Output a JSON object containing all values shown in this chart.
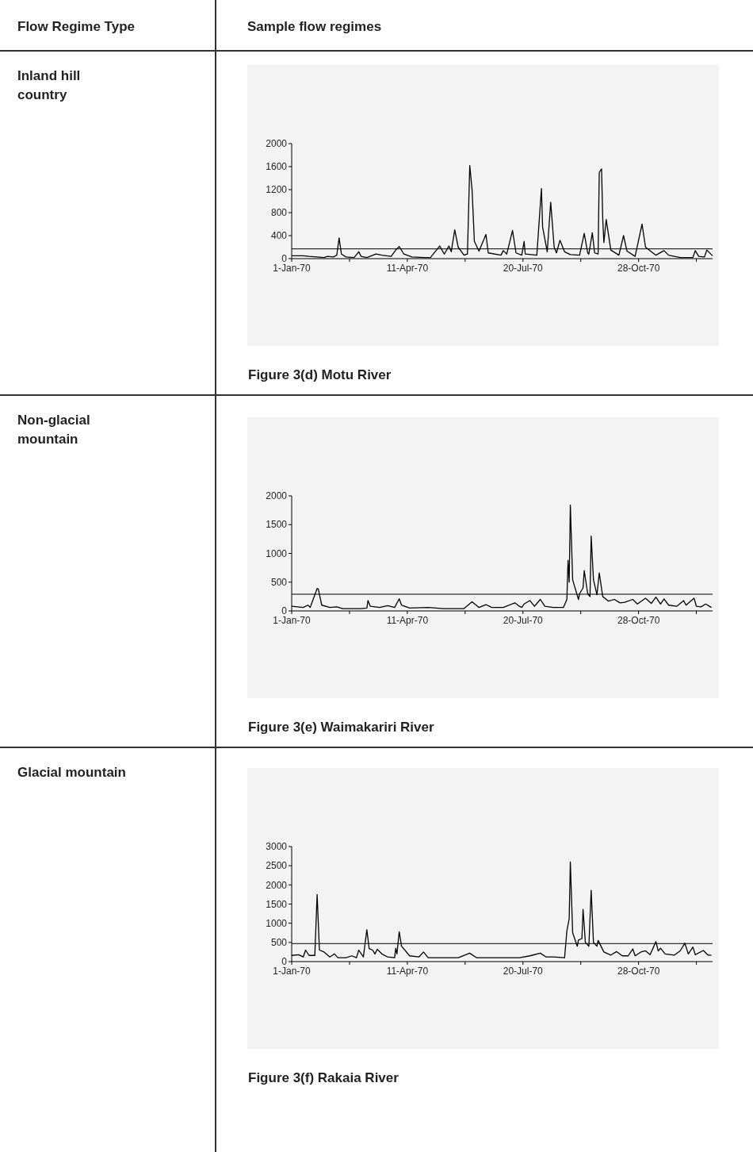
{
  "chart_data": [
    {
      "type": "line",
      "title": "Figure 3(d) Motu River",
      "annotations": [
        "Flow Regime Type",
        "Sample flow regimes",
        "Inland hill country"
      ],
      "xlim": [
        "1970-01-01",
        "1970-12-31"
      ],
      "xticks": [
        {
          "value": "1970-01-01",
          "label": "1-Jan-70"
        },
        {
          "value": "1970-02-20",
          "label": null
        },
        {
          "value": "1970-04-11",
          "label": "11-Apr-70"
        },
        {
          "value": "1970-05-31",
          "label": null
        },
        {
          "value": "1970-07-20",
          "label": "20-Jul-70"
        },
        {
          "value": "1970-09-08",
          "label": null
        },
        {
          "value": "1970-10-28",
          "label": "28-Oct-70"
        },
        {
          "value": "1970-12-17",
          "label": null
        }
      ],
      "ylim": [
        0,
        2000
      ],
      "yticks": [
        0,
        400,
        800,
        1200,
        1600,
        2000
      ],
      "marker": "none",
      "line_style": "solid",
      "ref_lines": [
        {
          "axis": "y",
          "value": 170,
          "color": "#000000"
        }
      ],
      "series": [
        {
          "color": "#000000",
          "x": [
            "1970-01-01",
            "1970-01-11",
            "1970-01-16",
            "1970-01-29",
            "1970-02-01",
            "1970-02-06",
            "1970-02-09",
            "1970-02-11",
            "1970-02-13",
            "1970-02-17",
            "1970-02-24",
            "1970-02-28",
            "1970-03-02",
            "1970-03-07",
            "1970-03-15",
            "1970-03-20",
            "1970-03-28",
            "1970-04-01",
            "1970-04-04",
            "1970-04-08",
            "1970-04-15",
            "1970-04-26",
            "1970-05-01",
            "1970-05-09",
            "1970-05-13",
            "1970-05-17",
            "1970-05-19",
            "1970-05-22",
            "1970-05-25",
            "1970-05-30",
            "1970-06-02",
            "1970-06-04",
            "1970-06-06",
            "1970-06-08",
            "1970-06-12",
            "1970-06-18",
            "1970-06-20",
            "1970-07-01",
            "1970-07-03",
            "1970-07-06",
            "1970-07-11",
            "1970-07-14",
            "1970-07-19",
            "1970-07-21",
            "1970-07-22",
            "1970-08-01",
            "1970-08-05",
            "1970-08-06",
            "1970-08-10",
            "1970-08-13",
            "1970-08-16",
            "1970-08-18",
            "1970-08-21",
            "1970-08-25",
            "1970-08-30",
            "1970-09-07",
            "1970-09-11",
            "1970-09-14",
            "1970-09-15",
            "1970-09-18",
            "1970-09-20",
            "1970-09-23",
            "1970-09-24",
            "1970-09-26",
            "1970-09-27",
            "1970-09-28",
            "1970-09-30",
            "1970-10-04",
            "1970-10-11",
            "1970-10-15",
            "1970-10-18",
            "1970-10-25",
            "1970-10-31",
            "1970-11-03",
            "1970-11-12",
            "1970-11-19",
            "1970-11-23",
            "1970-12-03",
            "1970-12-14",
            "1970-12-16",
            "1970-12-19",
            "1970-12-24",
            "1970-12-26",
            "1970-12-31"
          ],
          "values": [
            50,
            50,
            40,
            20,
            40,
            30,
            60,
            360,
            80,
            30,
            20,
            120,
            40,
            20,
            80,
            60,
            40,
            150,
            210,
            80,
            30,
            20,
            20,
            220,
            80,
            220,
            120,
            500,
            200,
            60,
            80,
            1620,
            1200,
            300,
            130,
            420,
            100,
            60,
            140,
            80,
            490,
            100,
            60,
            300,
            80,
            60,
            1220,
            550,
            120,
            980,
            200,
            100,
            320,
            120,
            70,
            60,
            440,
            100,
            80,
            450,
            100,
            80,
            1500,
            1560,
            700,
            280,
            680,
            150,
            60,
            400,
            130,
            40,
            600,
            200,
            60,
            140,
            60,
            20,
            20,
            140,
            40,
            30,
            150,
            50
          ]
        }
      ]
    },
    {
      "type": "line",
      "title": "Figure 3(e) Waimakariri River",
      "annotations": [
        "Non-glacial mountain"
      ],
      "xlim": [
        "1970-01-01",
        "1970-12-31"
      ],
      "xticks": [
        {
          "value": "1970-01-01",
          "label": "1-Jan-70"
        },
        {
          "value": "1970-02-20",
          "label": null
        },
        {
          "value": "1970-04-11",
          "label": "11-Apr-70"
        },
        {
          "value": "1970-05-31",
          "label": null
        },
        {
          "value": "1970-07-20",
          "label": "20-Jul-70"
        },
        {
          "value": "1970-09-08",
          "label": null
        },
        {
          "value": "1970-10-28",
          "label": "28-Oct-70"
        },
        {
          "value": "1970-12-17",
          "label": null
        }
      ],
      "ylim": [
        0,
        2000
      ],
      "yticks": [
        0,
        500,
        1000,
        1500,
        2000
      ],
      "marker": "none",
      "line_style": "solid",
      "ref_lines": [
        {
          "axis": "y",
          "value": 290,
          "color": "#000000"
        }
      ],
      "series": [
        {
          "color": "#000000",
          "x": [
            "1970-01-01",
            "1970-01-11",
            "1970-01-15",
            "1970-01-17",
            "1970-01-23",
            "1970-01-24",
            "1970-01-27",
            "1970-02-03",
            "1970-02-09",
            "1970-02-14",
            "1970-03-02",
            "1970-03-07",
            "1970-03-08",
            "1970-03-10",
            "1970-03-18",
            "1970-03-25",
            "1970-03-31",
            "1970-04-04",
            "1970-04-06",
            "1970-04-13",
            "1970-04-29",
            "1970-05-12",
            "1970-05-30",
            "1970-06-06",
            "1970-06-12",
            "1970-06-18",
            "1970-06-23",
            "1970-07-03",
            "1970-07-13",
            "1970-07-17",
            "1970-07-19",
            "1970-07-21",
            "1970-07-26",
            "1970-07-30",
            "1970-08-04",
            "1970-08-08",
            "1970-08-15",
            "1970-08-24",
            "1970-08-27",
            "1970-08-28",
            "1970-08-29",
            "1970-08-30",
            "1970-09-01",
            "1970-09-06",
            "1970-09-07",
            "1970-09-10",
            "1970-09-11",
            "1970-09-14",
            "1970-09-16",
            "1970-09-17",
            "1970-09-19",
            "1970-09-22",
            "1970-09-24",
            "1970-09-27",
            "1970-10-02",
            "1970-10-07",
            "1970-10-12",
            "1970-10-16",
            "1970-10-23",
            "1970-10-27",
            "1970-11-03",
            "1970-11-08",
            "1970-11-12",
            "1970-11-16",
            "1970-11-19",
            "1970-11-23",
            "1970-11-30",
            "1970-12-06",
            "1970-12-08",
            "1970-12-15",
            "1970-12-17",
            "1970-12-21",
            "1970-12-25",
            "1970-12-30"
          ],
          "values": [
            80,
            60,
            100,
            60,
            390,
            380,
            100,
            60,
            70,
            40,
            40,
            50,
            180,
            80,
            60,
            90,
            60,
            210,
            100,
            50,
            60,
            40,
            40,
            160,
            60,
            110,
            60,
            60,
            140,
            80,
            60,
            120,
            180,
            80,
            200,
            80,
            60,
            60,
            200,
            880,
            500,
            1840,
            540,
            200,
            300,
            400,
            700,
            300,
            250,
            1300,
            540,
            280,
            660,
            250,
            170,
            200,
            140,
            150,
            200,
            120,
            220,
            130,
            240,
            120,
            210,
            100,
            80,
            180,
            100,
            220,
            80,
            70,
            120,
            60
          ]
        }
      ]
    },
    {
      "type": "line",
      "title": "Figure 3(f) Rakaia River",
      "annotations": [
        "Glacial mountain"
      ],
      "xlim": [
        "1970-01-01",
        "1970-12-31"
      ],
      "xticks": [
        {
          "value": "1970-01-01",
          "label": "1-Jan-70"
        },
        {
          "value": "1970-02-20",
          "label": null
        },
        {
          "value": "1970-04-11",
          "label": "11-Apr-70"
        },
        {
          "value": "1970-05-31",
          "label": null
        },
        {
          "value": "1970-07-20",
          "label": "20-Jul-70"
        },
        {
          "value": "1970-09-08",
          "label": null
        },
        {
          "value": "1970-10-28",
          "label": "28-Oct-70"
        },
        {
          "value": "1970-12-17",
          "label": null
        }
      ],
      "ylim": [
        0,
        3000
      ],
      "yticks": [
        0,
        500,
        1000,
        1500,
        2000,
        2500,
        3000
      ],
      "marker": "none",
      "line_style": "solid",
      "ref_lines": [
        {
          "axis": "y",
          "value": 470,
          "color": "#000000"
        }
      ],
      "series": [
        {
          "color": "#000000",
          "x": [
            "1970-01-01",
            "1970-01-07",
            "1970-01-11",
            "1970-01-13",
            "1970-01-16",
            "1970-01-21",
            "1970-01-23",
            "1970-01-25",
            "1970-01-29",
            "1970-02-03",
            "1970-02-07",
            "1970-02-10",
            "1970-02-17",
            "1970-02-22",
            "1970-02-26",
            "1970-02-28",
            "1970-03-04",
            "1970-03-07",
            "1970-03-09",
            "1970-03-12",
            "1970-03-14",
            "1970-03-16",
            "1970-03-20",
            "1970-03-25",
            "1970-03-31",
            "1970-04-01",
            "1970-04-02",
            "1970-04-04",
            "1970-04-06",
            "1970-04-13",
            "1970-04-21",
            "1970-04-25",
            "1970-04-29",
            "1970-05-17",
            "1970-05-25",
            "1970-06-04",
            "1970-06-10",
            "1970-06-20",
            "1970-06-28",
            "1970-07-17",
            "1970-07-26",
            "1970-08-04",
            "1970-08-09",
            "1970-08-15",
            "1970-08-25",
            "1970-08-27",
            "1970-08-29",
            "1970-08-30",
            "1970-09-01",
            "1970-09-05",
            "1970-09-06",
            "1970-09-09",
            "1970-09-10",
            "1970-09-12",
            "1970-09-15",
            "1970-09-17",
            "1970-09-19",
            "1970-09-22",
            "1970-09-23",
            "1970-09-28",
            "1970-10-04",
            "1970-10-09",
            "1970-10-14",
            "1970-10-19",
            "1970-10-23",
            "1970-10-25",
            "1970-10-30",
            "1970-11-03",
            "1970-11-07",
            "1970-11-12",
            "1970-11-14",
            "1970-11-16",
            "1970-11-20",
            "1970-11-28",
            "1970-12-03",
            "1970-12-07",
            "1970-12-10",
            "1970-12-14",
            "1970-12-16",
            "1970-12-23",
            "1970-12-27",
            "1970-12-30"
          ],
          "values": [
            160,
            180,
            120,
            300,
            160,
            160,
            1750,
            300,
            250,
            120,
            200,
            100,
            100,
            150,
            100,
            300,
            120,
            830,
            340,
            300,
            200,
            320,
            200,
            120,
            100,
            350,
            200,
            780,
            400,
            150,
            120,
            250,
            100,
            100,
            100,
            220,
            100,
            100,
            100,
            100,
            150,
            220,
            120,
            120,
            100,
            800,
            1120,
            2600,
            750,
            400,
            560,
            600,
            1360,
            500,
            400,
            1860,
            500,
            400,
            550,
            250,
            170,
            260,
            150,
            150,
            330,
            150,
            250,
            280,
            180,
            520,
            280,
            350,
            200,
            170,
            280,
            480,
            200,
            380,
            180,
            290,
            170,
            170
          ]
        }
      ]
    }
  ]
}
